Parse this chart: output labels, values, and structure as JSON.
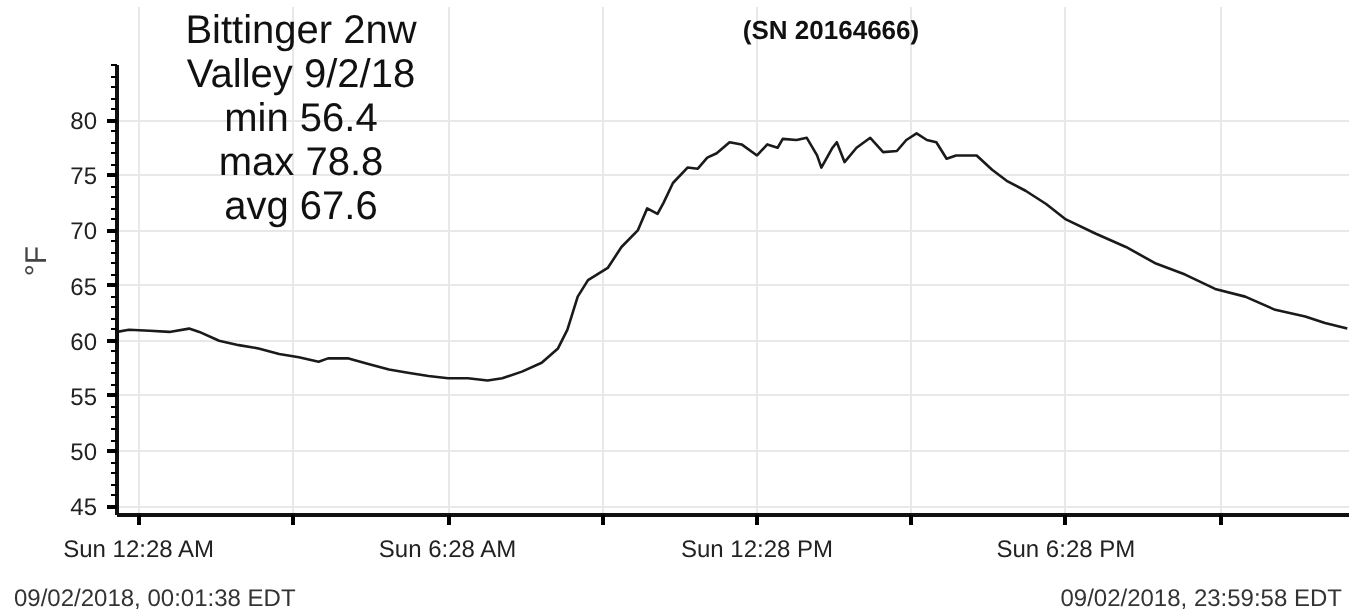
{
  "chart_data": {
    "type": "line",
    "title": "(SN 20164666)",
    "ylabel": "°F",
    "annotations": [
      "Bittinger 2nw\nValley 9/2/18\nmin 56.4\nmax 78.8\navg 67.6",
      "09/02/2018, 00:01:38 EDT",
      "09/02/2018, 23:59:58 EDT"
    ],
    "x": [
      "2018-09-02T00:02",
      "2018-09-02T00:16",
      "2018-09-02T00:40",
      "2018-09-02T01:03",
      "2018-09-02T01:26",
      "2018-09-02T01:38",
      "2018-09-02T02:01",
      "2018-09-02T02:24",
      "2018-09-02T02:47",
      "2018-09-02T03:11",
      "2018-09-02T03:34",
      "2018-09-02T03:57",
      "2018-09-02T04:08",
      "2018-09-02T04:32",
      "2018-09-02T04:55",
      "2018-09-02T05:19",
      "2018-09-02T05:41",
      "2018-09-02T06:05",
      "2018-09-02T06:28",
      "2018-09-02T06:51",
      "2018-09-02T07:14",
      "2018-09-02T07:31",
      "2018-09-02T07:54",
      "2018-09-02T08:17",
      "2018-09-02T08:36",
      "2018-09-02T08:47",
      "2018-09-02T08:59",
      "2018-09-02T09:11",
      "2018-09-02T09:34",
      "2018-09-02T09:50",
      "2018-09-02T10:09",
      "2018-09-02T10:20",
      "2018-09-02T10:32",
      "2018-09-02T10:39",
      "2018-09-02T10:50",
      "2018-09-02T11:07",
      "2018-09-02T11:19",
      "2018-09-02T11:30",
      "2018-09-02T11:41",
      "2018-09-02T11:56",
      "2018-09-02T12:10",
      "2018-09-02T12:28",
      "2018-09-02T12:40",
      "2018-09-02T12:52",
      "2018-09-02T12:58",
      "2018-09-02T13:14",
      "2018-09-02T13:26",
      "2018-09-02T13:38",
      "2018-09-02T13:43",
      "2018-09-02T13:56",
      "2018-09-02T14:01",
      "2018-09-02T14:10",
      "2018-09-02T14:24",
      "2018-09-02T14:40",
      "2018-09-02T14:55",
      "2018-09-02T15:11",
      "2018-09-02T15:22",
      "2018-09-02T15:34",
      "2018-09-02T15:46",
      "2018-09-02T15:57",
      "2018-09-02T16:09",
      "2018-09-02T16:20",
      "2018-09-02T16:44",
      "2018-09-02T17:02",
      "2018-09-02T17:19",
      "2018-09-02T17:41",
      "2018-09-02T18:05",
      "2018-09-02T18:28",
      "2018-09-02T19:03",
      "2018-09-02T19:38",
      "2018-09-02T20:13",
      "2018-09-02T20:47",
      "2018-09-02T21:22",
      "2018-09-02T21:57",
      "2018-09-02T22:32",
      "2018-09-02T23:07",
      "2018-09-02T23:30",
      "2018-09-02T23:56"
    ],
    "series": [
      {
        "color": "#1a1a1a",
        "values": [
          60.8,
          61.0,
          60.9,
          60.8,
          61.1,
          60.8,
          60.0,
          59.6,
          59.3,
          58.8,
          58.5,
          58.1,
          58.4,
          58.4,
          57.9,
          57.4,
          57.1,
          56.8,
          56.6,
          56.6,
          56.4,
          56.6,
          57.2,
          58.0,
          59.3,
          61.0,
          64.0,
          65.5,
          66.6,
          68.5,
          70.0,
          72.0,
          71.5,
          72.5,
          74.3,
          75.7,
          75.6,
          76.6,
          77.0,
          78.0,
          77.8,
          76.8,
          77.8,
          77.5,
          78.3,
          78.2,
          78.4,
          76.8,
          75.7,
          77.5,
          78.0,
          76.2,
          77.5,
          78.4,
          77.1,
          77.2,
          78.2,
          78.8,
          78.2,
          78.0,
          76.5,
          76.8,
          76.8,
          75.5,
          74.5,
          73.6,
          72.4,
          71.0,
          69.7,
          68.5,
          67.0,
          66.0,
          64.7,
          64.0,
          62.8,
          62.2,
          61.6,
          61.1
        ]
      }
    ],
    "xlim": [
      "2018-09-02T00:02",
      "2018-09-02T23:58"
    ],
    "ylim": [
      44.2,
      85
    ],
    "xticks": [
      {
        "value": "2018-09-02T00:28",
        "label": "Sun 12:28 AM"
      },
      {
        "value": "2018-09-02T03:28",
        "label": null
      },
      {
        "value": "2018-09-02T06:28",
        "label": "Sun 6:28 AM"
      },
      {
        "value": "2018-09-02T09:28",
        "label": null
      },
      {
        "value": "2018-09-02T12:28",
        "label": "Sun 12:28 PM"
      },
      {
        "value": "2018-09-02T15:28",
        "label": null
      },
      {
        "value": "2018-09-02T18:28",
        "label": "Sun 6:28 PM"
      },
      {
        "value": "2018-09-02T21:28",
        "label": null
      }
    ],
    "yticks": [
      45,
      50,
      55,
      60,
      65,
      70,
      75,
      80
    ],
    "grid": true,
    "marker": "none",
    "line_style": "solid"
  }
}
